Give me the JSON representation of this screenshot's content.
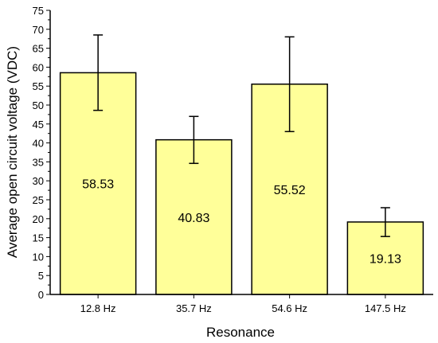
{
  "chart_data": {
    "type": "bar",
    "categories": [
      "12.8 Hz",
      "35.7 Hz",
      "54.6 Hz",
      "147.5 Hz"
    ],
    "values": [
      58.53,
      40.83,
      55.52,
      19.13
    ],
    "value_labels": [
      "58.53",
      "40.83",
      "55.52",
      "19.13"
    ],
    "error_low": [
      48.6,
      34.6,
      43.0,
      15.3
    ],
    "error_high": [
      68.5,
      47.0,
      68.0,
      22.9
    ],
    "xlabel": "Resonance",
    "ylabel": "Average open circuit voltage (VDC)",
    "ylim": [
      0,
      75
    ],
    "yticks": [
      0,
      5,
      10,
      15,
      20,
      25,
      30,
      35,
      40,
      45,
      50,
      55,
      60,
      65,
      70,
      75
    ],
    "ytick_labels": [
      "0",
      "5",
      "10",
      "15",
      "20",
      "25",
      "30",
      "35",
      "40",
      "45",
      "50",
      "55",
      "60",
      "65",
      "70",
      "75"
    ],
    "grid": false,
    "bar_color": "#ffff99",
    "bar_edge_color": "#000000"
  }
}
